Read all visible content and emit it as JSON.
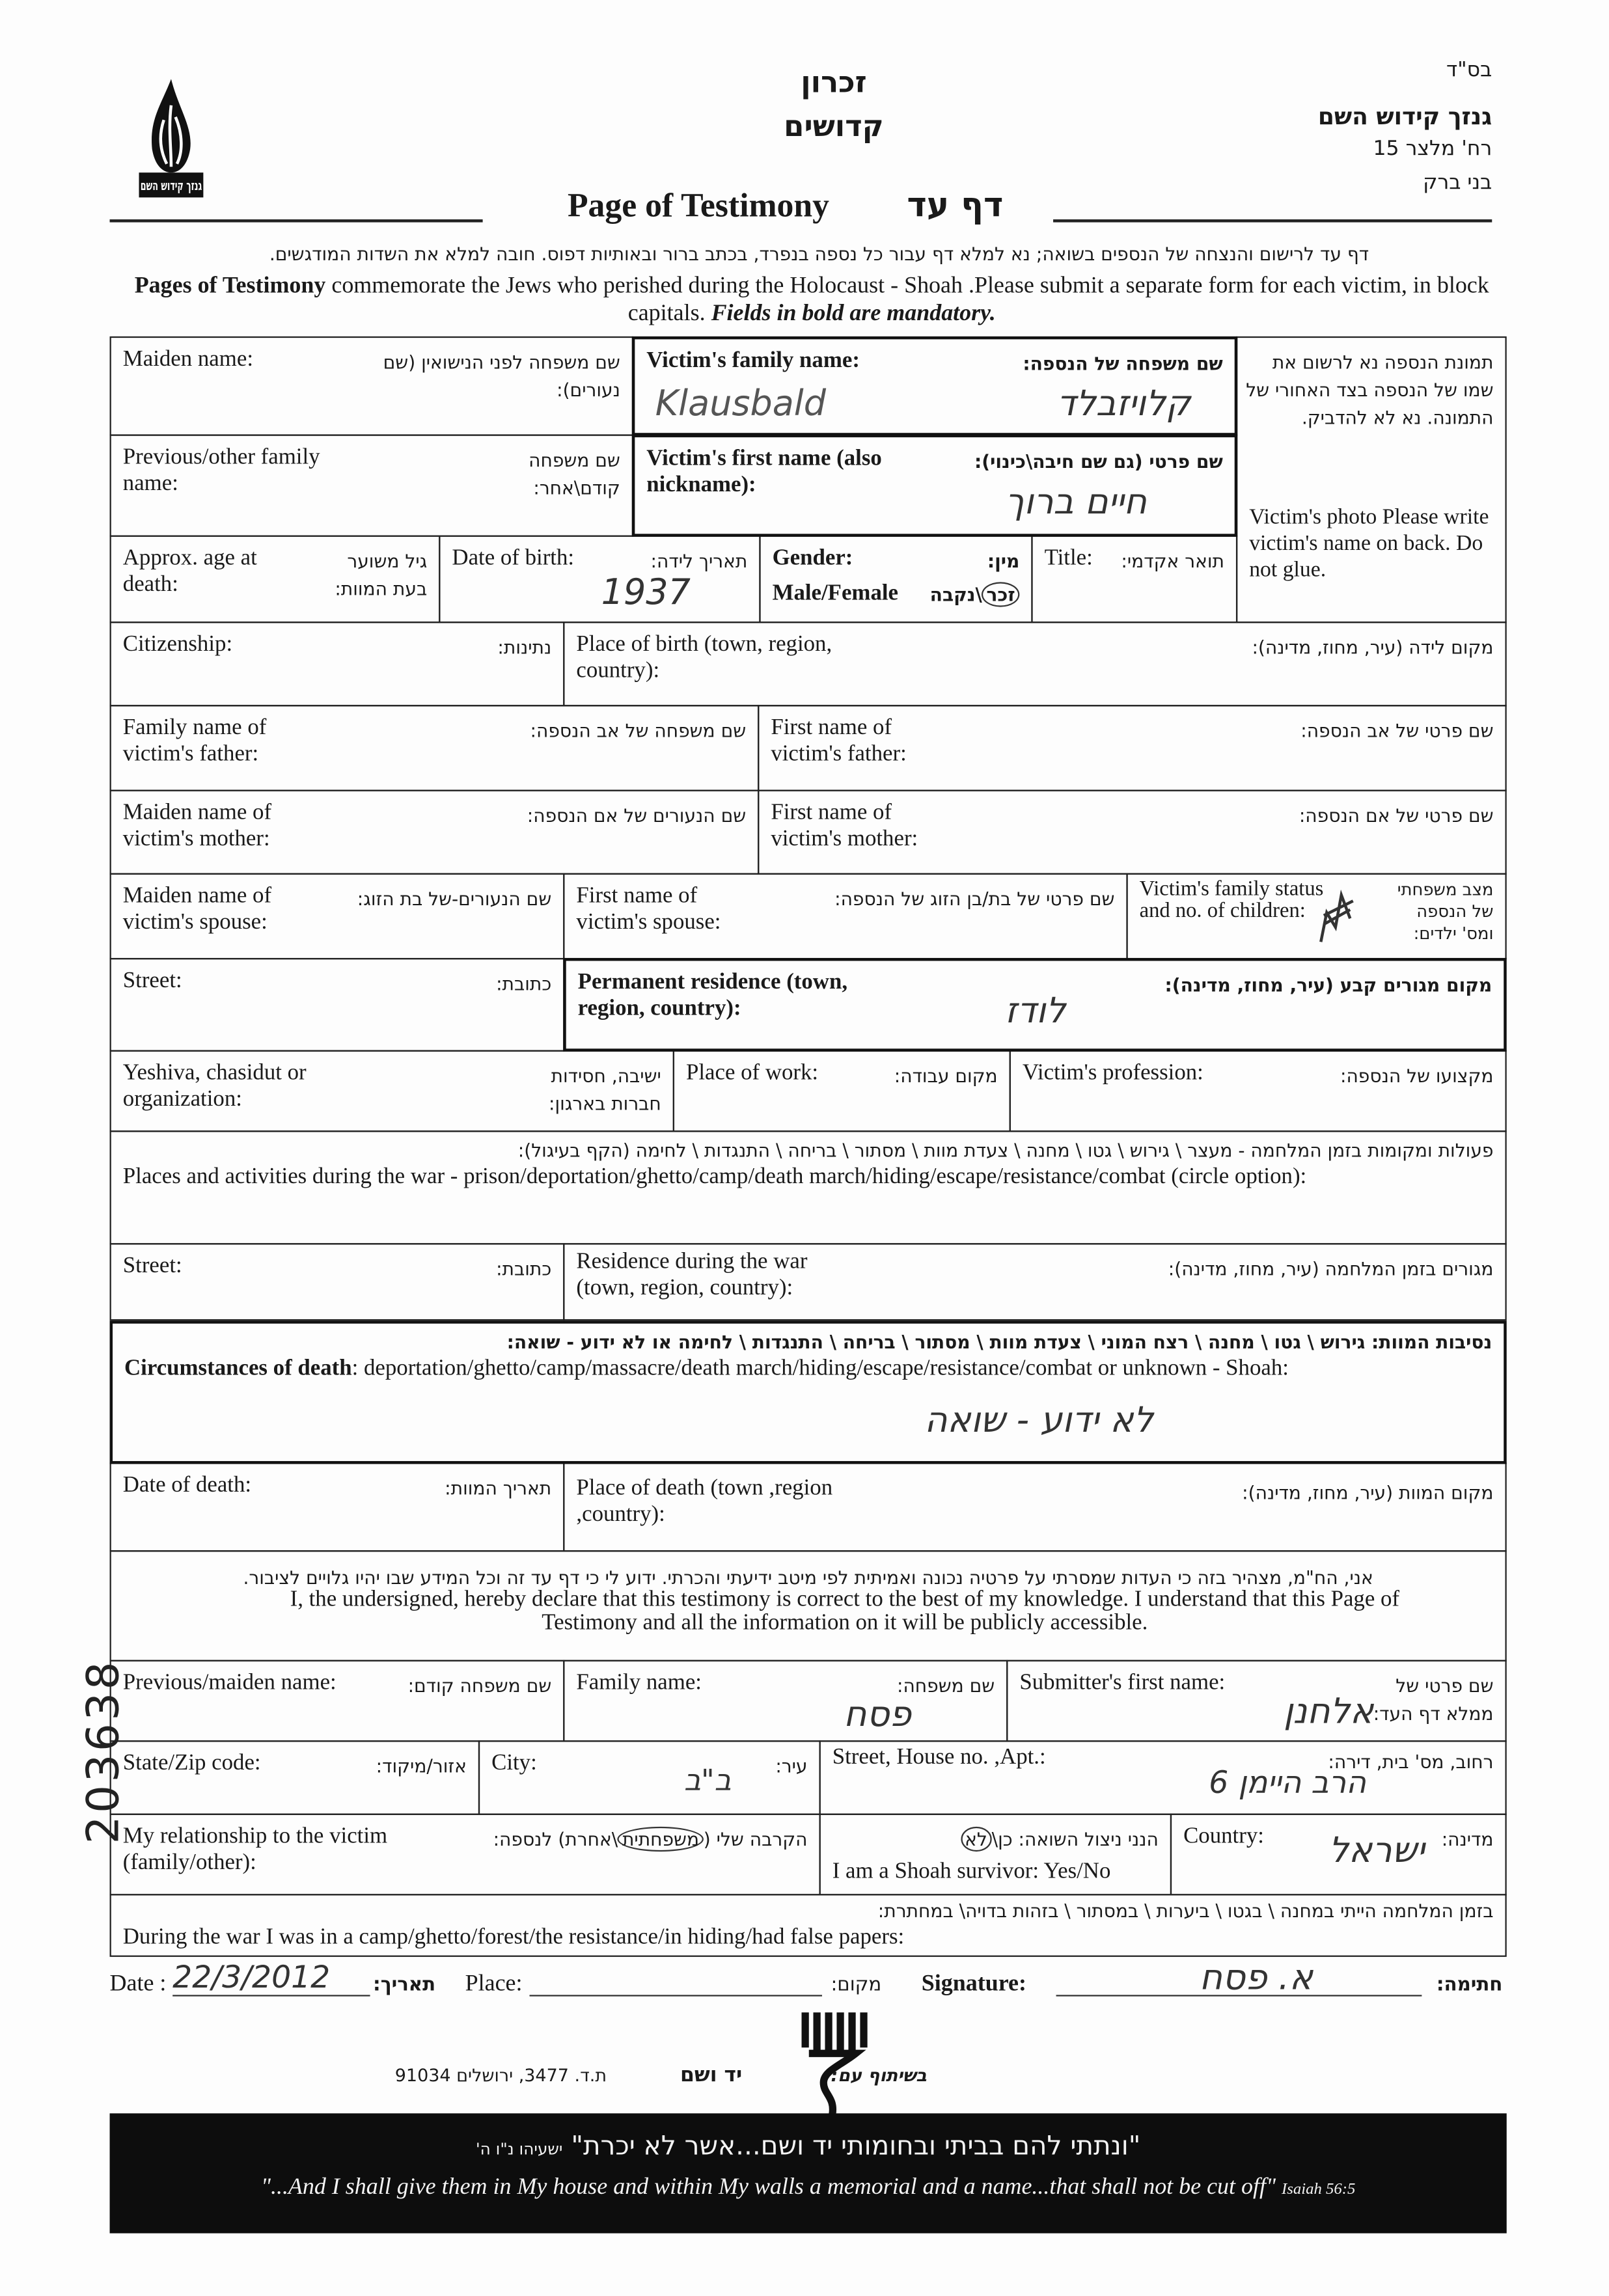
{
  "header": {
    "bsd": "בס\"ד",
    "org_name": "גנזך קידוש השם",
    "org_street": "רח' מלצר 15",
    "org_city": "בני ברק",
    "zikaron_1": "זכרון",
    "zikaron_2": "קדושים",
    "logo_text": "גנזך קידוש השם",
    "title_en": "Page of Testimony",
    "title_he": "דף עד"
  },
  "intro": {
    "he": "דף עד לרישום והנצחה של הנספים בשואה; נא למלא דף עבור כל נספה בנפרד, בכתב ברור ובאותיות דפוס. חובה למלא את השדות המודגשים.",
    "en_bold": "Pages of Testimony",
    "en_1": " commemorate the Jews who perished during the Holocaust - Shoah .Please submit a separate form for each victim, in block capitals. ",
    "en_italic": "Fields in bold are mandatory."
  },
  "fields": {
    "maiden_en": "Maiden name:",
    "maiden_he": "שם משפחה לפני הנישואין (שם נעורים):",
    "family_en": "Victim's family name:",
    "family_he": "שם משפחה של הנספה:",
    "family_value_latin": "Klausbald",
    "family_value_he": "קלויזבלד",
    "photo_he": "תמונת הנספה נא לרשום את שמו של הנספה בצד האחורי של התמונה. נא לא להדביק.",
    "photo_en": "Victim's photo Please write victim's name on back. Do not glue.",
    "prev_en": "Previous/other family name:",
    "prev_he": "שם משפחה קודם\\אחר:",
    "first_en": "Victim's first name (also nickname):",
    "first_he": "שם פרטי (גם שם חיבה\\כינוי):",
    "first_value": "חיים ברוך",
    "age_en": "Approx. age at death:",
    "age_he": "גיל משוער בעת המוות:",
    "dob_en": "Date of birth:",
    "dob_he": "תאריך לידה:",
    "dob_value": "1937",
    "gender_en": "Gender:",
    "gender_opts_en": "Male/Female",
    "gender_he": "מין:",
    "gender_male_he": "זכר",
    "gender_female_he": "\\נקבה",
    "title_en": "Title:",
    "title_he": "תואר אקדמי:",
    "citizenship_en": "Citizenship:",
    "citizenship_he": "נתינות:",
    "pob_en": "Place of birth (town, region, country):",
    "pob_he": "מקום לידה (עיר, מחוז, מדינה):",
    "father_family_en": "Family name of victim's father:",
    "father_family_he": "שם משפחה של אב הנספה:",
    "father_first_en": "First name of victim's father:",
    "father_first_he": "שם פרטי של אב הנספה:",
    "mother_maiden_en": "Maiden name of victim's mother:",
    "mother_maiden_he": "שם הנעורים של אם הנספה:",
    "mother_first_en": "First name of victim's mother:",
    "mother_first_he": "שם פרטי של אם הנספה:",
    "spouse_maiden_en": "Maiden name of victim's spouse:",
    "spouse_maiden_he": "שם הנעורים-של בת הזוג:",
    "spouse_first_en": "First name of victim's spouse:",
    "spouse_first_he": "שם פרטי של בת/בן הזוג של הנספה:",
    "status_en": "Victim's family status and no. of children:",
    "status_he": "מצב משפחתי של הנספה ומס' ילדים:",
    "street_en": "Street:",
    "street_he": "כתובת:",
    "perm_en": "Permanent residence (town, region, country):",
    "perm_he": "מקום מגורים קבע (עיר, מחוז, מדינה):",
    "perm_value": "לודז",
    "yeshiva_en": "Yeshiva, chasidut or organization:",
    "yeshiva_he": "ישיבה, חסידות חברות בארגון:",
    "work_en": "Place of work:",
    "work_he": "מקום עבודה:",
    "profession_en": "Victim's profession:",
    "profession_he": "מקצועו של הנספה:",
    "places_he": "פעולות ומקומות בזמן המלחמה - מעצר \\ גירוש \\ גטו \\ מחנה \\ צעדת מוות \\ מסתור \\ בריחה \\ התנגדות \\ לחימה (הקף בעיגול):",
    "places_en": "Places and activities during the war - prison/deportation/ghetto/camp/death march/hiding/escape/resistance/combat (circle option):",
    "war_street_en": "Street:",
    "war_street_he": "כתובת:",
    "war_res_en": "Residence during the war (town, region, country):",
    "war_res_he": "מגורים בזמן המלחמה (עיר, מחוז, מדינה):",
    "circ_he": "נסיבות המוות: גירוש \\ גטו \\ מחנה \\ רצח המוני \\ צעדת מוות \\ מסתור \\ בריחה \\ התנגדות \\ לחימה או לא ידוע - שואה:",
    "circ_en_bold": "Circumstances of death",
    "circ_en": ": deportation/ghetto/camp/massacre/death march/hiding/escape/resistance/combat or unknown - Shoah:",
    "circ_value": "לא ידוע - שואה",
    "dod_en": "Date of death:",
    "dod_he": "תאריך המוות:",
    "pod_en": "Place of death (town ,region ,country):",
    "pod_he": "מקום המוות (עיר, מחוז, מדינה):"
  },
  "declaration": {
    "he": "אני, הח\"מ, מצהיר בזה כי העדות שמסרתי על פרטיה נכונה ואמיתית לפי מיטב ידיעתי והכרתי. ידוע לי כי דף עד זה וכל המידע שבו יהיו גלויים לציבור.",
    "en": "I, the undersigned, hereby declare that this testimony is correct to the best of my knowledge. I understand that this Page of Testimony and all the information on it will be publicly accessible."
  },
  "submitter": {
    "prev_en": "Previous/maiden name:",
    "prev_he": "שם משפחה קודם:",
    "family_en": "Family name:",
    "family_he": "שם משפחה:",
    "family_value": "פסח",
    "first_en": "Submitter's first name:",
    "first_he": "שם פרטי של ממלא דף העד:",
    "first_value": "אלחנן",
    "zip_en": "State/Zip code:",
    "zip_he": "אזור/מיקוד:",
    "city_en": "City:",
    "city_he": "עיר:",
    "city_value": "ב\"ב",
    "street_en": "Street, House no. ,Apt.:",
    "street_he": "רחוב, מס' בית, דירה:",
    "street_value": "הרב היימן 6",
    "rel_en": "My relationship to the victim (family/other):",
    "rel_he_pre": "הקרבה שלי (",
    "rel_he_circled": "משפחתית",
    "rel_he_post": "\\אחרת) לנספה:",
    "survivor_he_pre": "הנני ניצול השואה: כן\\",
    "survivor_he_circled": "לא",
    "survivor_en": "I am a Shoah survivor:  Yes/No",
    "country_en": "Country:",
    "country_he": "מדינה:",
    "country_value": "ישראל",
    "war_he": "בזמן המלחמה הייתי במחנה \\ בגטו \\ ביערות \\ במסתור \\ בזהות בדויה\\ במחתרת:",
    "war_en": "During the war I was in a camp/ghetto/forest/the resistance/in hiding/had false papers:"
  },
  "sign": {
    "date_en": "Date :",
    "date_he": "תאריך:",
    "date_value": "22/3/2012",
    "place_en": "Place:",
    "place_he": "מקום:",
    "signature_en": "Signature:",
    "signature_he": "חתימה:",
    "signature_value": "א. פסח"
  },
  "footer": {
    "cooperation_he": "בשיתוף עם:",
    "yadvashem_he": "יד ושם",
    "address_he": "ת.ד. 3477, ירושלים 91034",
    "quote_he": "\"ונתתי להם בביתי ובחומותי יד ושם...אשר לא יכרת\"",
    "quote_ref_he": "ישעיהו נ\"ו ה'",
    "quote_en": "\"...And I shall give them in My house and within My walls a memorial and a name...that shall not be cut off\"",
    "quote_ref_en": "Isaiah 56:5"
  },
  "archive_number": "203638"
}
